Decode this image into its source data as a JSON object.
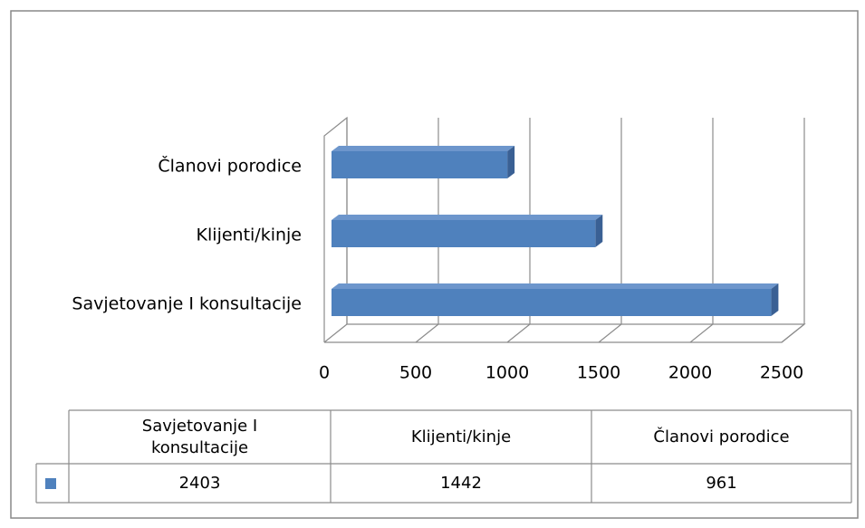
{
  "chart_data": {
    "type": "bar3d_horizontal",
    "categories": [
      "Savjetovanje I konsultacije",
      "Klijenti/kinje",
      "Članovi porodice"
    ],
    "values": [
      2403,
      1442,
      961
    ],
    "color": "#4f81bd",
    "xlim": [
      0,
      2500
    ],
    "xticks": [
      0,
      500,
      1000,
      1500,
      2000,
      2500
    ],
    "grid": true,
    "data_table": true
  }
}
